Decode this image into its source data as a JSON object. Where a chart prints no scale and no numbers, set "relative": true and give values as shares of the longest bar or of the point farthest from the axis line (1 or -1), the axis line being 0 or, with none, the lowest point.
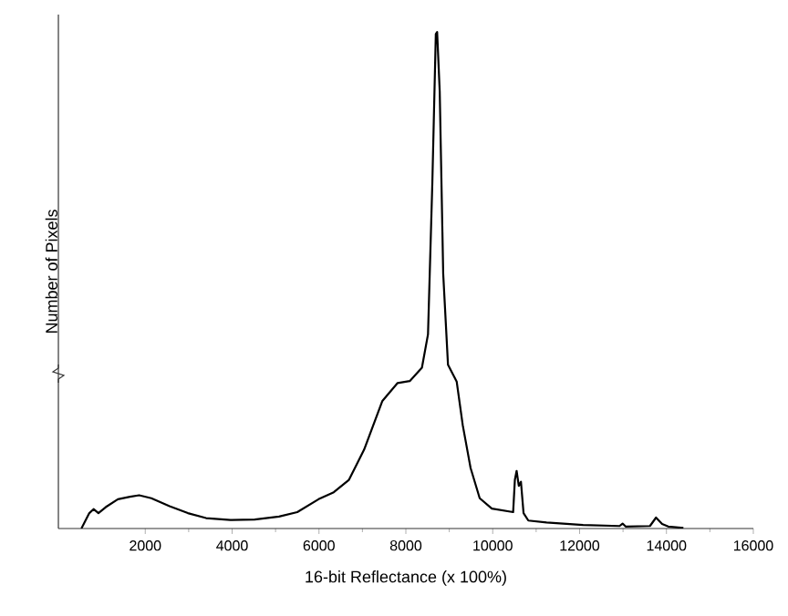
{
  "chart_data": {
    "type": "line",
    "xlabel": "16-bit Reflectance (x 100%)",
    "ylabel": "Number of Pixels",
    "relative": true,
    "color": "#000000",
    "xlim": [
      0,
      16000
    ],
    "xticks": [
      2000,
      4000,
      6000,
      8000,
      10000,
      12000,
      14000,
      16000
    ],
    "x": [
      530,
      712,
      810,
      922,
      1090,
      1370,
      1650,
      1860,
      2140,
      2560,
      2980,
      3400,
      3960,
      4520,
      5080,
      5500,
      5990,
      6340,
      6690,
      7040,
      7460,
      7810,
      8090,
      8370,
      8510,
      8610,
      8690,
      8720,
      8780,
      8860,
      8970,
      9170,
      9310,
      9490,
      9700,
      9980,
      10470,
      10510,
      10550,
      10600,
      10650,
      10710,
      10820,
      11240,
      12080,
      12920,
      12990,
      13060,
      13620,
      13760,
      13900,
      14040,
      14390
    ],
    "values": [
      0,
      0.031,
      0.039,
      0.031,
      0.043,
      0.059,
      0.064,
      0.067,
      0.061,
      0.045,
      0.031,
      0.021,
      0.017,
      0.018,
      0.024,
      0.033,
      0.059,
      0.073,
      0.098,
      0.159,
      0.257,
      0.293,
      0.297,
      0.324,
      0.391,
      0.697,
      0.996,
      1,
      0.88,
      0.513,
      0.33,
      0.296,
      0.208,
      0.122,
      0.061,
      0.04,
      0.033,
      0.098,
      0.116,
      0.086,
      0.094,
      0.031,
      0.016,
      0.012,
      0.007,
      0.005,
      0.01,
      0.004,
      0.005,
      0.022,
      0.009,
      0.004,
      0.001
    ]
  }
}
